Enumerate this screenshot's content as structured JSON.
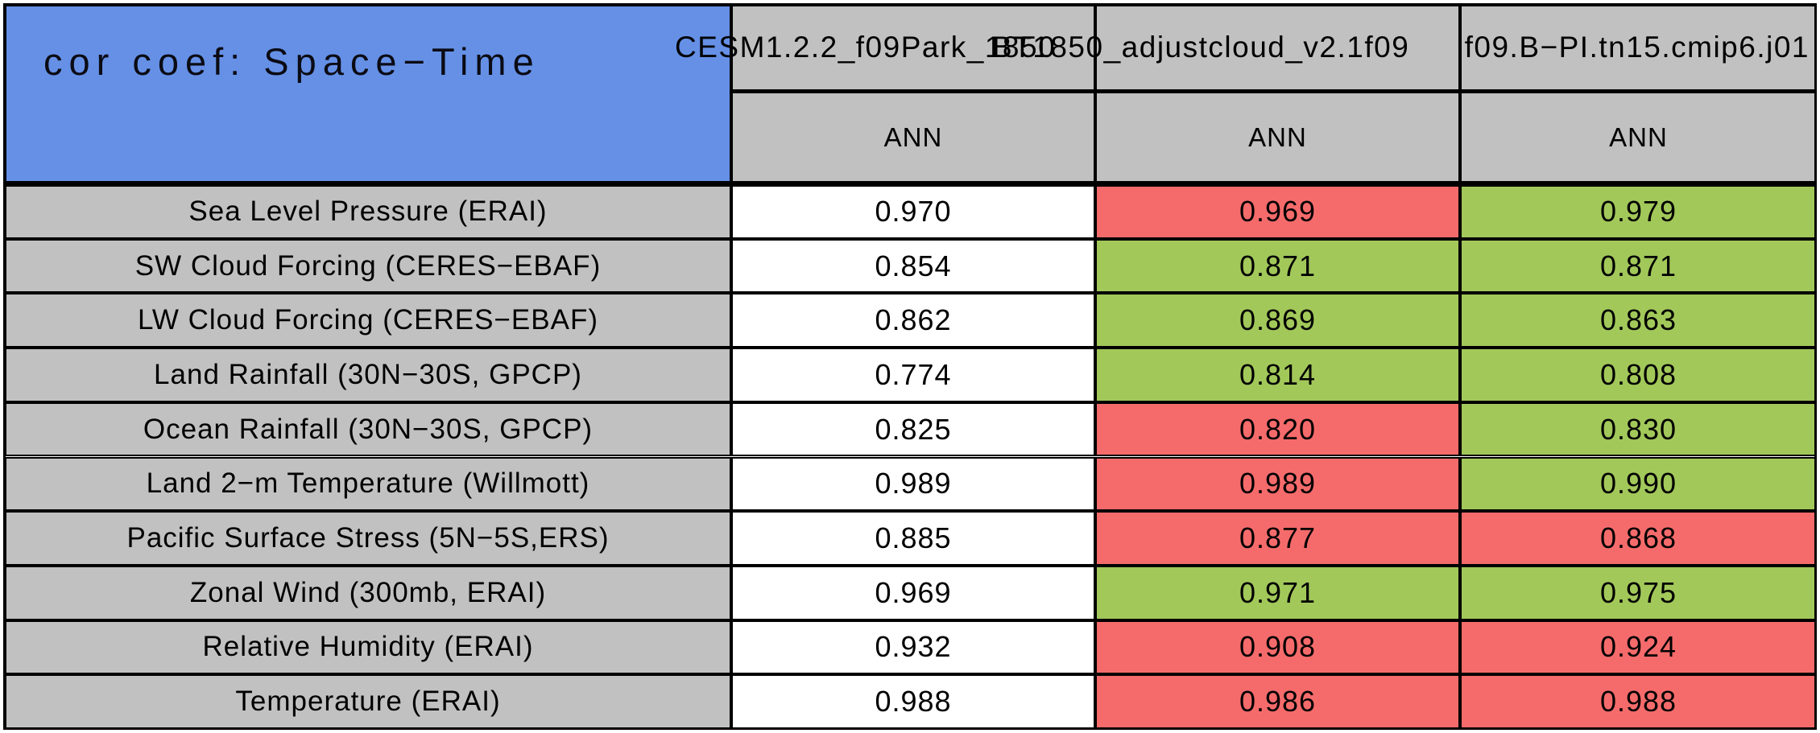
{
  "title": "cor coef: Space−Time",
  "header": {
    "case_names": [
      "CESM1.2.2_f09Park_1850",
      "BT1850_adjustcloud_v2.1f09",
      "f09.B−PI.tn15.cmip6.j01"
    ],
    "season_labels": [
      "ANN",
      "ANN",
      "ANN"
    ]
  },
  "colors": {
    "blue": "#6590e6",
    "gray": "#c1c1c1",
    "white": "#ffffff",
    "red": "#f56b6b",
    "green": "#a2c85a"
  },
  "rows": [
    {
      "label": "Sea Level Pressure (ERAI)",
      "values": [
        "0.970",
        "0.969",
        "0.979"
      ],
      "cell_colors": [
        "white",
        "red",
        "green"
      ]
    },
    {
      "label": "SW Cloud Forcing (CERES−EBAF)",
      "values": [
        "0.854",
        "0.871",
        "0.871"
      ],
      "cell_colors": [
        "white",
        "green",
        "green"
      ]
    },
    {
      "label": "LW Cloud Forcing (CERES−EBAF)",
      "values": [
        "0.862",
        "0.869",
        "0.863"
      ],
      "cell_colors": [
        "white",
        "green",
        "green"
      ]
    },
    {
      "label": "Land Rainfall (30N−30S, GPCP)",
      "values": [
        "0.774",
        "0.814",
        "0.808"
      ],
      "cell_colors": [
        "white",
        "green",
        "green"
      ]
    },
    {
      "label": "Ocean Rainfall (30N−30S, GPCP)",
      "values": [
        "0.825",
        "0.820",
        "0.830"
      ],
      "cell_colors": [
        "white",
        "red",
        "green"
      ]
    },
    {
      "label": "Land 2−m Temperature (Willmott)",
      "values": [
        "0.989",
        "0.989",
        "0.990"
      ],
      "cell_colors": [
        "white",
        "red",
        "green"
      ]
    },
    {
      "label": "Pacific Surface Stress (5N−5S,ERS)",
      "values": [
        "0.885",
        "0.877",
        "0.868"
      ],
      "cell_colors": [
        "white",
        "red",
        "red"
      ]
    },
    {
      "label": "Zonal Wind (300mb, ERAI)",
      "values": [
        "0.969",
        "0.971",
        "0.975"
      ],
      "cell_colors": [
        "white",
        "green",
        "green"
      ]
    },
    {
      "label": "Relative Humidity (ERAI)",
      "values": [
        "0.932",
        "0.908",
        "0.924"
      ],
      "cell_colors": [
        "white",
        "red",
        "red"
      ]
    },
    {
      "label": "Temperature (ERAI)",
      "values": [
        "0.988",
        "0.986",
        "0.988"
      ],
      "cell_colors": [
        "white",
        "red",
        "red"
      ]
    }
  ],
  "chart_data": {
    "type": "table",
    "title": "cor coef: Space-Time",
    "columns": [
      "CESM1.2.2_f09Park_1850 (ANN)",
      "BT1850_adjustcloud_v2.1f09 (ANN)",
      "f09.B-PI.tn15.cmip6.j01 (ANN)"
    ],
    "row_labels": [
      "Sea Level Pressure (ERAI)",
      "SW Cloud Forcing (CERES-EBAF)",
      "LW Cloud Forcing (CERES-EBAF)",
      "Land Rainfall (30N-30S, GPCP)",
      "Ocean Rainfall (30N-30S, GPCP)",
      "Land 2-m Temperature (Willmott)",
      "Pacific Surface Stress (5N-5S,ERS)",
      "Zonal Wind (300mb, ERAI)",
      "Relative Humidity (ERAI)",
      "Temperature (ERAI)"
    ],
    "values": [
      [
        0.97,
        0.969,
        0.979
      ],
      [
        0.854,
        0.871,
        0.871
      ],
      [
        0.862,
        0.869,
        0.863
      ],
      [
        0.774,
        0.814,
        0.808
      ],
      [
        0.825,
        0.82,
        0.83
      ],
      [
        0.989,
        0.989,
        0.99
      ],
      [
        0.885,
        0.877,
        0.868
      ],
      [
        0.969,
        0.971,
        0.975
      ],
      [
        0.932,
        0.908,
        0.924
      ],
      [
        0.988,
        0.986,
        0.988
      ]
    ],
    "cell_highlight": [
      [
        "white",
        "red",
        "green"
      ],
      [
        "white",
        "green",
        "green"
      ],
      [
        "white",
        "green",
        "green"
      ],
      [
        "white",
        "green",
        "green"
      ],
      [
        "white",
        "red",
        "green"
      ],
      [
        "white",
        "red",
        "green"
      ],
      [
        "white",
        "red",
        "red"
      ],
      [
        "white",
        "green",
        "green"
      ],
      [
        "white",
        "red",
        "red"
      ],
      [
        "white",
        "red",
        "red"
      ]
    ]
  }
}
